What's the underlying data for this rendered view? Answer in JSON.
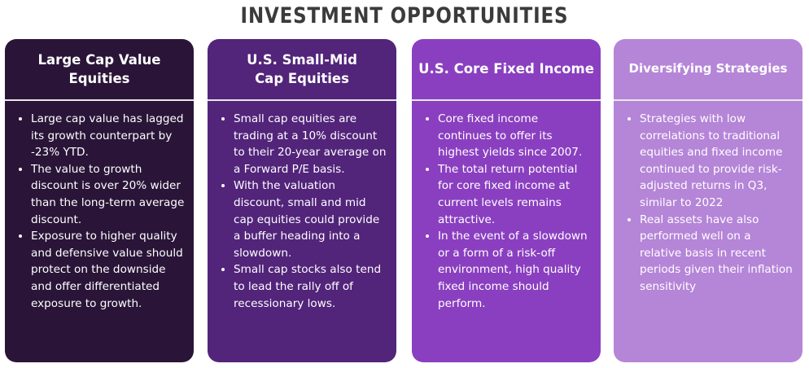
{
  "title": "INVESTMENT OPPORTUNITIES",
  "cards": [
    {
      "heading": "Large Cap Value Equities",
      "color": "#2a1538",
      "bullets": [
        "Large cap value has lagged its growth counterpart by -23% YTD.",
        "The value to growth discount is over 20% wider than the long-term average discount.",
        "Exposure to higher quality and defensive value should protect on the downside and offer differentiated exposure to growth."
      ]
    },
    {
      "heading": "U.S. Small-Mid Cap Equities",
      "color": "#52247a",
      "bullets": [
        "Small cap equities are trading at a 10% discount to their 20-year average on a Forward P/E basis.",
        "With the valuation discount, small and mid cap equities could provide a buffer heading into a slowdown.",
        "Small cap stocks also tend to lead the rally off of recessionary lows."
      ]
    },
    {
      "heading": "U.S. Core Fixed Income",
      "color": "#8a3fc0",
      "bullets": [
        "Core fixed income continues to offer its highest yields since 2007.",
        "The total return potential for core fixed income at current levels remains attractive.",
        "In the event of a slowdown or a form of a risk-off environment, high quality fixed income should perform."
      ]
    },
    {
      "heading": "Diversifying Strategies",
      "color": "#b585d8",
      "bullets": [
        "Strategies with low correlations to traditional equities and fixed income continued to provide risk-adjusted returns in Q3, similar to 2022",
        "Real assets have also performed well on a relative basis in recent periods given their inflation sensitivity"
      ]
    }
  ]
}
